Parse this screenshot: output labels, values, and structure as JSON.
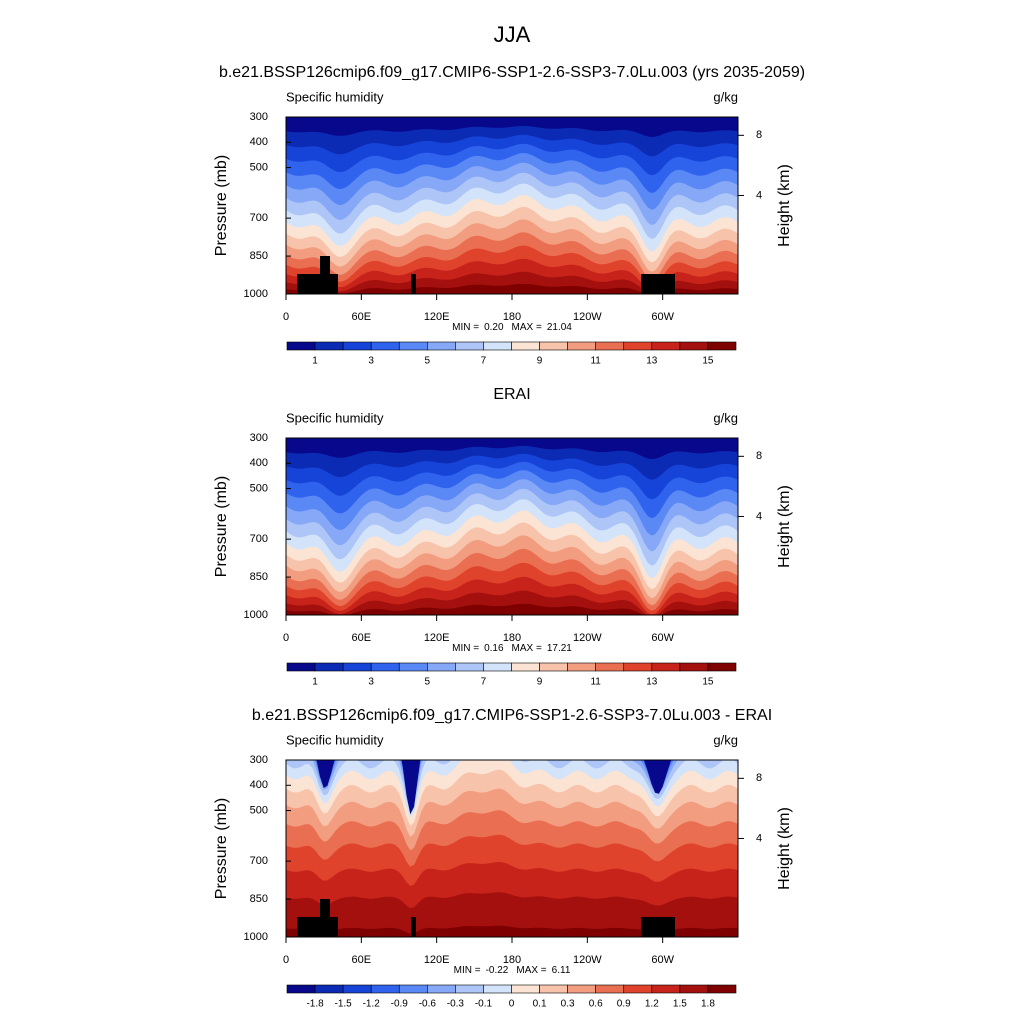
{
  "title": "JJA",
  "chart_data": [
    {
      "type": "contour",
      "title": "b.e21.BSSP126cmip6.f09_g17.CMIP6-SSP1-2.6-SSP3-7.0Lu.003 (yrs 2035-2059)",
      "left_label": "Specific humidity",
      "units": "g/kg",
      "ylabel": "Pressure (mb)",
      "y2label": "Height (km)",
      "xlim": [
        0,
        360
      ],
      "xticks": [
        0,
        {
          "value": 60,
          "label": "60E"
        },
        {
          "value": 120,
          "label": "120E"
        },
        180,
        {
          "value": 240,
          "label": "120W"
        },
        {
          "value": 300,
          "label": "60W"
        }
      ],
      "ylim": [
        1000,
        300
      ],
      "yticks": [
        300,
        400,
        500,
        700,
        850,
        1000
      ],
      "y2ticks": [
        4,
        8
      ],
      "min_text": "MIN =",
      "min": {
        "value": 0.2,
        "label": "0.20"
      },
      "max_text": "MAX =",
      "max": 21.04,
      "colorbar": {
        "colors": [
          "#08088c",
          "#0b2bb5",
          "#1744d8",
          "#2f63ee",
          "#5a88f5",
          "#86a8f7",
          "#aec6f7",
          "#d2e3fa",
          "#fbe4d4",
          "#f8c3ab",
          "#f29d80",
          "#ea6f52",
          "#e0432c",
          "#c8231a",
          "#a4100e",
          "#7f0000"
        ],
        "labels": [
          1,
          3,
          5,
          7,
          9,
          11,
          13,
          15
        ]
      }
    },
    {
      "type": "contour",
      "title": "ERAI",
      "left_label": "Specific humidity",
      "units": "g/kg",
      "ylabel": "Pressure (mb)",
      "y2label": "Height (km)",
      "xlim": [
        0,
        360
      ],
      "xticks": [
        0,
        {
          "value": 60,
          "label": "60E"
        },
        {
          "value": 120,
          "label": "120E"
        },
        180,
        {
          "value": 240,
          "label": "120W"
        },
        {
          "value": 300,
          "label": "60W"
        }
      ],
      "ylim": [
        1000,
        300
      ],
      "yticks": [
        300,
        400,
        500,
        700,
        850,
        1000
      ],
      "y2ticks": [
        4,
        8
      ],
      "min_text": "MIN =",
      "min": 0.16,
      "max_text": "MAX =",
      "max": 17.21,
      "colorbar": {
        "colors": [
          "#08088c",
          "#0b2bb5",
          "#1744d8",
          "#2f63ee",
          "#5a88f5",
          "#86a8f7",
          "#aec6f7",
          "#d2e3fa",
          "#fbe4d4",
          "#f8c3ab",
          "#f29d80",
          "#ea6f52",
          "#e0432c",
          "#c8231a",
          "#a4100e",
          "#7f0000"
        ],
        "labels": [
          1,
          3,
          5,
          7,
          9,
          11,
          13,
          15
        ]
      }
    },
    {
      "type": "contour-diff",
      "title": "b.e21.BSSP126cmip6.f09_g17.CMIP6-SSP1-2.6-SSP3-7.0Lu.003 - ERAI",
      "left_label": "Specific humidity",
      "units": "g/kg",
      "ylabel": "Pressure (mb)",
      "y2label": "Height (km)",
      "xlim": [
        0,
        360
      ],
      "xticks": [
        0,
        {
          "value": 60,
          "label": "60E"
        },
        {
          "value": 120,
          "label": "120E"
        },
        180,
        {
          "value": 240,
          "label": "120W"
        },
        {
          "value": 300,
          "label": "60W"
        }
      ],
      "ylim": [
        1000,
        300
      ],
      "yticks": [
        300,
        400,
        500,
        700,
        850,
        1000
      ],
      "y2ticks": [
        4,
        8
      ],
      "min_text": "MIN =",
      "min": -0.22,
      "max_text": "MAX =",
      "max": 6.11,
      "colorbar": {
        "colors": [
          "#08088c",
          "#0b2bb5",
          "#1744d8",
          "#2f63ee",
          "#5a88f5",
          "#86a8f7",
          "#aec6f7",
          "#d2e3fa",
          "#fbe4d4",
          "#f8c3ab",
          "#f29d80",
          "#ea6f52",
          "#e0432c",
          "#c8231a",
          "#a4100e",
          "#7f0000"
        ],
        "labels": [
          -1.8,
          -1.5,
          -1.2,
          -0.9,
          -0.6,
          -0.3,
          -0.1,
          0,
          0.1,
          0.3,
          0.6,
          0.9,
          1.2,
          1.5,
          1.8
        ]
      }
    }
  ]
}
